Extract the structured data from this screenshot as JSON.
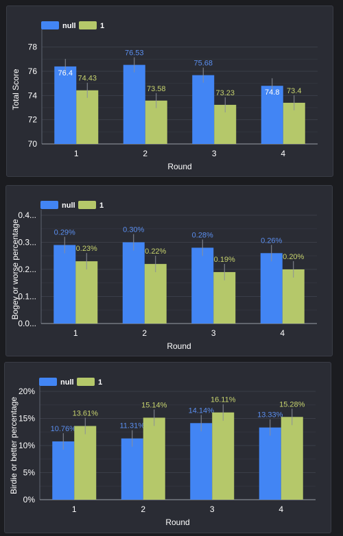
{
  "colors": {
    "null": "#4285f4",
    "one": "#b5c86a",
    "null_label": "#5b8ff0",
    "one_label": "#c8d46e"
  },
  "chart_data": [
    {
      "type": "bar",
      "categories": [
        "1",
        "2",
        "3",
        "4"
      ],
      "series": [
        {
          "name": "null",
          "values": [
            76.4,
            76.53,
            75.68,
            74.8
          ],
          "labels": [
            "76.4",
            "76.53",
            "75.68",
            "74.8"
          ]
        },
        {
          "name": "1",
          "values": [
            74.43,
            73.58,
            73.23,
            73.4
          ],
          "labels": [
            "74.43",
            "73.58",
            "73.23",
            "73.4"
          ]
        }
      ],
      "xlabel": "Round",
      "ylabel": "Total Score",
      "ylim": [
        70,
        79
      ],
      "yticks": [
        70,
        72,
        74,
        76,
        78
      ],
      "ytick_labels": [
        "70",
        "72",
        "74",
        "76",
        "78"
      ],
      "legend": "top-left",
      "grid": true
    },
    {
      "type": "bar",
      "categories": [
        "1",
        "2",
        "3",
        "4"
      ],
      "series": [
        {
          "name": "null",
          "values": [
            0.29,
            0.3,
            0.28,
            0.26
          ],
          "labels": [
            "0.29%",
            "0.30%",
            "0.28%",
            "0.26%"
          ]
        },
        {
          "name": "1",
          "values": [
            0.23,
            0.22,
            0.19,
            0.2
          ],
          "labels": [
            "0.23%",
            "0.22%",
            "0.19%",
            "0.20%"
          ]
        }
      ],
      "xlabel": "Round",
      "ylabel": "Bogey or worse percentage",
      "ylim": [
        0,
        0.4
      ],
      "yticks": [
        0,
        0.1,
        0.2,
        0.3,
        0.4
      ],
      "ytick_labels": [
        "0.0...",
        "0.1...",
        "0.2...",
        "0.3...",
        "0.4..."
      ],
      "legend": "top-left",
      "grid": true
    },
    {
      "type": "bar",
      "categories": [
        "1",
        "2",
        "3",
        "4"
      ],
      "series": [
        {
          "name": "null",
          "values": [
            10.76,
            11.31,
            14.14,
            13.33
          ],
          "labels": [
            "10.76%",
            "11.31%",
            "14.14%",
            "13.33%"
          ]
        },
        {
          "name": "1",
          "values": [
            13.61,
            15.14,
            16.11,
            15.28
          ],
          "labels": [
            "13.61%",
            "15.14%",
            "16.11%",
            "15.28%"
          ]
        }
      ],
      "xlabel": "Round",
      "ylabel": "Birdie or better percentage",
      "ylim": [
        0,
        20
      ],
      "yticks": [
        0,
        5,
        10,
        15,
        20
      ],
      "ytick_labels": [
        "0%",
        "5%",
        "10%",
        "15%",
        "20%"
      ],
      "legend": "top-left",
      "grid": true
    }
  ]
}
